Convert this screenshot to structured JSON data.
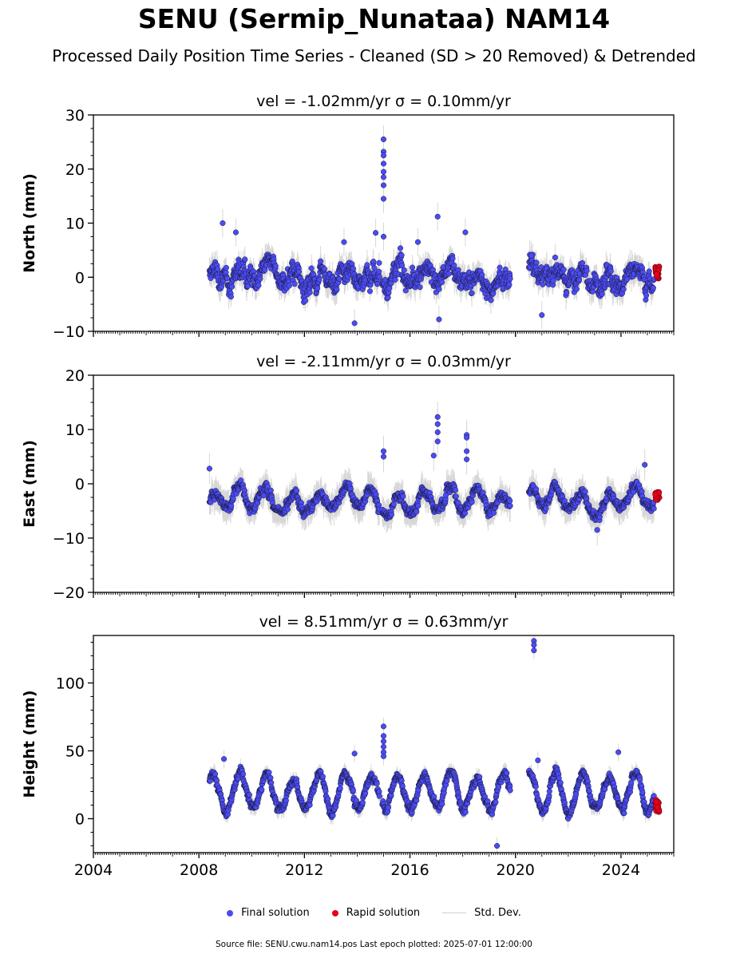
{
  "figure": {
    "title": "SENU (Sermip_Nunataa) NAM14",
    "subtitle": "Processed Daily Position Time Series - Cleaned (SD > 20 Removed) & Detrended"
  },
  "legend": {
    "final": "Final solution",
    "rapid": "Rapid solution",
    "std": "Std. Dev."
  },
  "source_note": "Source file: SENU.cwu.nam14.pos  Last epoch plotted: 2025-07-01 12:00:00",
  "colors": {
    "final": "#4b4bf5",
    "rapid": "#e8001a",
    "std": "#b8b8b8",
    "edge": "#1a1a3a"
  },
  "chart_data": [
    {
      "type": "scatter",
      "panel": "north",
      "title": "vel = -1.02mm/yr   σ = 0.10mm/yr",
      "ylabel": "North (mm)",
      "xlim": [
        2004,
        2026
      ],
      "ylim": [
        -10,
        30
      ],
      "yticks": [
        -10,
        0,
        10,
        20,
        30
      ],
      "xticks": [
        2004,
        2008,
        2012,
        2016,
        2020,
        2024
      ],
      "data_span": [
        2008.4,
        2025.45
      ],
      "gaps": [
        [
          2014.85,
          2014.95
        ],
        [
          2019.8,
          2020.5
        ]
      ],
      "annual_amplitude": 1.2,
      "noise": 2.0,
      "std_dev": 2.0,
      "outliers": [
        {
          "x": 2015.0,
          "y": 25.5
        },
        {
          "x": 2015.0,
          "y": 23.2
        },
        {
          "x": 2015.0,
          "y": 22.5
        },
        {
          "x": 2015.0,
          "y": 21.0
        },
        {
          "x": 2015.0,
          "y": 19.5
        },
        {
          "x": 2015.0,
          "y": 18.5
        },
        {
          "x": 2015.0,
          "y": 17.0
        },
        {
          "x": 2015.0,
          "y": 14.5
        },
        {
          "x": 2015.0,
          "y": 7.5
        },
        {
          "x": 2017.05,
          "y": 11.2
        },
        {
          "x": 2008.9,
          "y": 10.0
        },
        {
          "x": 2009.4,
          "y": 8.3
        },
        {
          "x": 2014.7,
          "y": 8.2
        },
        {
          "x": 2018.1,
          "y": 8.3
        },
        {
          "x": 2013.5,
          "y": 6.5
        },
        {
          "x": 2016.3,
          "y": 6.5
        },
        {
          "x": 2020.6,
          "y": 4.0
        },
        {
          "x": 2013.9,
          "y": -8.5
        },
        {
          "x": 2017.1,
          "y": -7.8
        },
        {
          "x": 2021.0,
          "y": -7.0
        }
      ],
      "rapid": {
        "x": [
          2025.3,
          2025.45
        ],
        "y": [
          -0.5,
          2.0
        ]
      }
    },
    {
      "type": "scatter",
      "panel": "east",
      "title": "vel = -2.11mm/yr   σ = 0.03mm/yr",
      "ylabel": "East (mm)",
      "xlim": [
        2004,
        2026
      ],
      "ylim": [
        -20,
        20
      ],
      "yticks": [
        -20,
        -10,
        0,
        10,
        20
      ],
      "xticks": [
        2004,
        2008,
        2012,
        2016,
        2020,
        2024
      ],
      "data_span": [
        2008.4,
        2025.45
      ],
      "gaps": [
        [
          2014.85,
          2014.95
        ],
        [
          2019.8,
          2020.5
        ]
      ],
      "baseline": -3,
      "annual_amplitude": 1.8,
      "noise": 1.1,
      "std_dev": 2.2,
      "outliers": [
        {
          "x": 2017.05,
          "y": 12.3
        },
        {
          "x": 2017.05,
          "y": 11.0
        },
        {
          "x": 2017.05,
          "y": 9.5
        },
        {
          "x": 2017.05,
          "y": 7.8
        },
        {
          "x": 2018.15,
          "y": 9.0
        },
        {
          "x": 2018.15,
          "y": 8.5
        },
        {
          "x": 2018.15,
          "y": 6.0
        },
        {
          "x": 2018.15,
          "y": 4.5
        },
        {
          "x": 2015.0,
          "y": 6.0
        },
        {
          "x": 2015.0,
          "y": 5.0
        },
        {
          "x": 2016.9,
          "y": 5.2
        },
        {
          "x": 2008.4,
          "y": 2.8
        },
        {
          "x": 2024.9,
          "y": 3.5
        },
        {
          "x": 2023.1,
          "y": -8.5
        }
      ],
      "rapid": {
        "x": [
          2025.3,
          2025.45
        ],
        "y": [
          -3.0,
          -1.5
        ]
      }
    },
    {
      "type": "scatter",
      "panel": "height",
      "title": "vel = 8.51mm/yr   σ = 0.63mm/yr",
      "ylabel": "Height (mm)",
      "xlim": [
        2004,
        2026
      ],
      "ylim": [
        -25,
        135
      ],
      "yticks": [
        0,
        50,
        100
      ],
      "xticks": [
        2004,
        2008,
        2012,
        2016,
        2020,
        2024
      ],
      "data_span": [
        2008.4,
        2025.45
      ],
      "gaps": [
        [
          2014.85,
          2014.95
        ],
        [
          2019.8,
          2020.5
        ]
      ],
      "baseline": 20,
      "annual_amplitude": 13,
      "noise": 3.5,
      "std_dev": 5,
      "outliers": [
        {
          "x": 2020.7,
          "y": 131
        },
        {
          "x": 2020.7,
          "y": 128
        },
        {
          "x": 2020.7,
          "y": 124
        },
        {
          "x": 2015.0,
          "y": 68
        },
        {
          "x": 2015.0,
          "y": 61
        },
        {
          "x": 2015.0,
          "y": 57
        },
        {
          "x": 2015.0,
          "y": 53
        },
        {
          "x": 2015.0,
          "y": 49
        },
        {
          "x": 2015.0,
          "y": 46
        },
        {
          "x": 2008.95,
          "y": 44
        },
        {
          "x": 2023.9,
          "y": 49
        },
        {
          "x": 2020.85,
          "y": 43
        },
        {
          "x": 2019.3,
          "y": -20
        },
        {
          "x": 2013.9,
          "y": 48
        }
      ],
      "rapid": {
        "x": [
          2025.3,
          2025.45
        ],
        "y": [
          3,
          14
        ]
      }
    }
  ]
}
